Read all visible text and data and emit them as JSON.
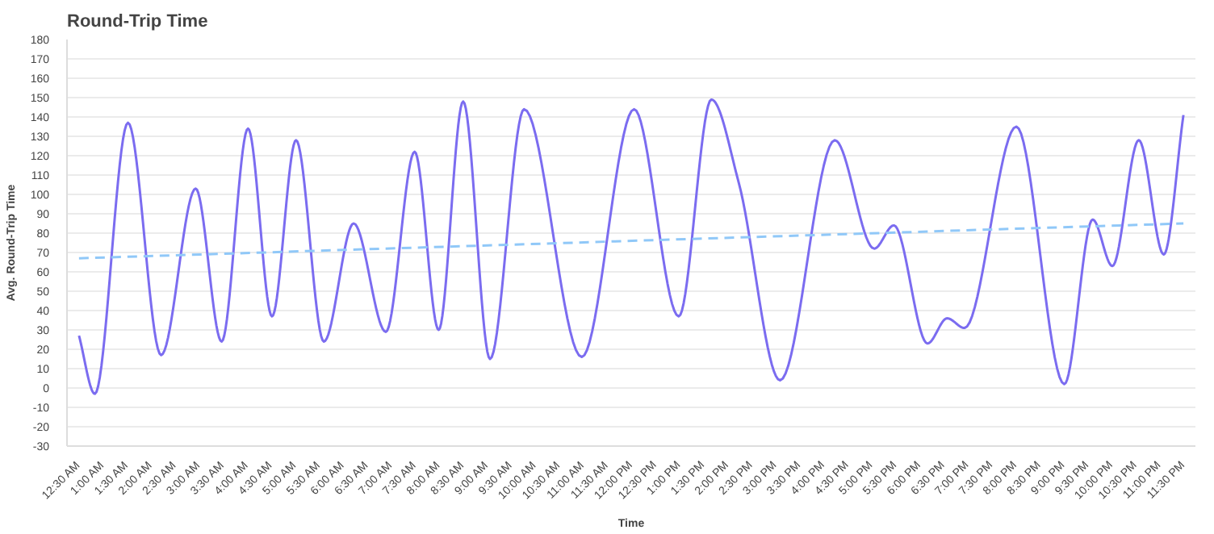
{
  "chart_data": {
    "type": "line",
    "title": "Round-Trip Time",
    "xlabel": "Time",
    "ylabel": "Avg. Round-Trip Time",
    "xlim": [
      0.25,
      23.75
    ],
    "ylim": [
      -30,
      180
    ],
    "yticks": [
      -30,
      -20,
      -10,
      0,
      10,
      20,
      30,
      40,
      50,
      60,
      70,
      80,
      90,
      100,
      110,
      120,
      130,
      140,
      150,
      160,
      170,
      180
    ],
    "xticks": [
      {
        "value": 0.5,
        "label": "12:30 AM"
      },
      {
        "value": 1,
        "label": "1:00 AM"
      },
      {
        "value": 1.5,
        "label": "1:30 AM"
      },
      {
        "value": 2,
        "label": "2:00 AM"
      },
      {
        "value": 2.5,
        "label": "2:30 AM"
      },
      {
        "value": 3,
        "label": "3:00 AM"
      },
      {
        "value": 3.5,
        "label": "3:30 AM"
      },
      {
        "value": 4,
        "label": "4:00 AM"
      },
      {
        "value": 4.5,
        "label": "4:30 AM"
      },
      {
        "value": 5,
        "label": "5:00 AM"
      },
      {
        "value": 5.5,
        "label": "5:30 AM"
      },
      {
        "value": 6,
        "label": "6:00 AM"
      },
      {
        "value": 6.5,
        "label": "6:30 AM"
      },
      {
        "value": 7,
        "label": "7:00 AM"
      },
      {
        "value": 7.5,
        "label": "7:30 AM"
      },
      {
        "value": 8,
        "label": "8:00 AM"
      },
      {
        "value": 8.5,
        "label": "8:30 AM"
      },
      {
        "value": 9,
        "label": "9:00 AM"
      },
      {
        "value": 9.5,
        "label": "9:30 AM"
      },
      {
        "value": 10,
        "label": "10:00 AM"
      },
      {
        "value": 10.5,
        "label": "10:30 AM"
      },
      {
        "value": 11,
        "label": "11:00 AM"
      },
      {
        "value": 11.5,
        "label": "11:30 AM"
      },
      {
        "value": 12,
        "label": "12:00 PM"
      },
      {
        "value": 12.5,
        "label": "12:30 PM"
      },
      {
        "value": 13,
        "label": "1:00 PM"
      },
      {
        "value": 13.5,
        "label": "1:30 PM"
      },
      {
        "value": 14,
        "label": "2:00 PM"
      },
      {
        "value": 14.5,
        "label": "2:30 PM"
      },
      {
        "value": 15,
        "label": "3:00 PM"
      },
      {
        "value": 15.5,
        "label": "3:30 PM"
      },
      {
        "value": 16,
        "label": "4:00 PM"
      },
      {
        "value": 16.5,
        "label": "4:30 PM"
      },
      {
        "value": 17,
        "label": "5:00 PM"
      },
      {
        "value": 17.5,
        "label": "5:30 PM"
      },
      {
        "value": 18,
        "label": "6:00 PM"
      },
      {
        "value": 18.5,
        "label": "6:30 PM"
      },
      {
        "value": 19,
        "label": "7:00 PM"
      },
      {
        "value": 19.5,
        "label": "7:30 PM"
      },
      {
        "value": 20,
        "label": "8:00 PM"
      },
      {
        "value": 20.5,
        "label": "8:30 PM"
      },
      {
        "value": 21,
        "label": "9:00 PM"
      },
      {
        "value": 21.5,
        "label": "9:30 PM"
      },
      {
        "value": 22,
        "label": "10:00 PM"
      },
      {
        "value": 22.5,
        "label": "10:30 PM"
      },
      {
        "value": 23,
        "label": "11:00 PM"
      },
      {
        "value": 23.5,
        "label": "11:30 PM"
      }
    ],
    "grid": "y",
    "series": [
      {
        "color": "#7b6cf0",
        "line_style": "solid",
        "x": [
          0.5,
          0.83,
          1.52,
          2.21,
          2.93,
          3.47,
          4.02,
          4.52,
          5.02,
          5.6,
          6.22,
          6.89,
          7.49,
          7.99,
          8.5,
          9.06,
          9.77,
          10.97,
          12.06,
          12.99,
          13.67,
          14.24,
          15.1,
          16.24,
          17.06,
          17.47,
          18.17,
          18.58,
          18.94,
          20.02,
          21.02,
          21.61,
          22.02,
          22.57,
          23.09,
          23.5
        ],
        "values": [
          27,
          -3,
          137,
          17,
          103,
          24,
          134,
          37,
          128,
          24,
          85,
          29,
          122,
          30,
          148,
          15,
          144,
          16,
          144,
          37,
          149,
          106,
          4,
          128,
          72,
          84,
          23,
          36,
          31,
          135,
          2,
          87,
          63,
          128,
          69,
          141
        ]
      },
      {
        "color": "#90c8f8",
        "line_style": "dashed",
        "x": [
          0.5,
          23.5
        ],
        "values": [
          67,
          85
        ]
      }
    ]
  }
}
